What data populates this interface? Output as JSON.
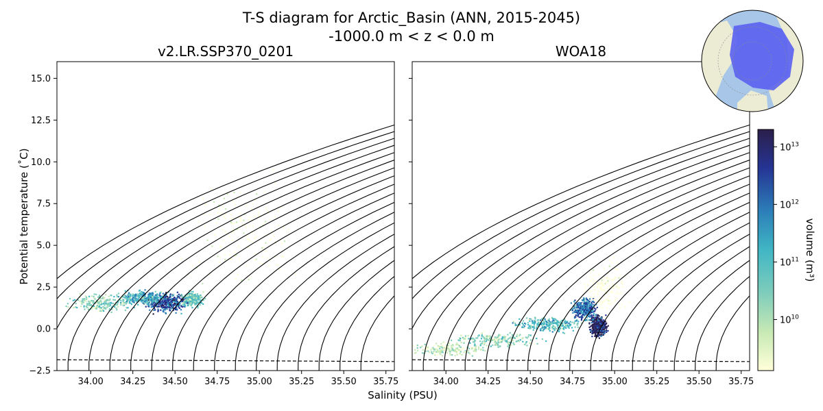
{
  "title_line1": "T-S diagram for Arctic_Basin (ANN, 2015-2045)",
  "title_line2": "-1000.0 m < z < 0.0 m",
  "xlabel": "Salinity (PSU)",
  "ylabel": "Potential temperature (˚C)",
  "colorbar": {
    "label": "volume (m³)",
    "scale": "log",
    "range": [
      1300000000.0,
      20000000000000.0
    ],
    "ticks": [
      {
        "value": 10000000000.0,
        "base": "10",
        "exp": "10"
      },
      {
        "value": 100000000000.0,
        "base": "10",
        "exp": "11"
      },
      {
        "value": 1000000000000.0,
        "base": "10",
        "exp": "12"
      },
      {
        "value": 10000000000000.0,
        "base": "10",
        "exp": "13"
      }
    ],
    "colors": [
      "#ffffd9",
      "#c7e9b4",
      "#7fcdbb",
      "#41b6c4",
      "#2c7fb8",
      "#253494",
      "#2b1f4a"
    ]
  },
  "inset_map": {
    "region": "Arctic_Basin",
    "land_color": "#ecebd4",
    "ocean_color": "#a8c6e8",
    "region_color": "#5a61f0"
  },
  "chart_data": [
    {
      "type": "heatmap",
      "title": "v2.LR.SSP370_0201",
      "xlim": [
        33.8,
        35.8
      ],
      "ylim": [
        -2.5,
        16
      ],
      "xticks": [
        "34.00",
        "34.25",
        "34.50",
        "34.75",
        "35.00",
        "35.25",
        "35.50",
        "35.75"
      ],
      "yticks": [
        "−2.5",
        "0.0",
        "2.5",
        "5.0",
        "7.5",
        "10.0",
        "12.5",
        "15.0"
      ],
      "freezing_line": [
        [
          33.8,
          -1.85
        ],
        [
          35.8,
          -1.96
        ]
      ],
      "density_contours": [
        "25.20",
        "25.40",
        "25.60",
        "25.80",
        "26.00",
        "26.20",
        "26.40",
        "26.60",
        "26.80",
        "27.00",
        "27.20",
        "27.40",
        "27.60",
        "27.80",
        "28.00",
        "28.20",
        "28.40",
        "28.60"
      ],
      "volume_clusters": [
        {
          "S": 34.45,
          "T": 1.6,
          "spreadS": 0.1,
          "spreadT": 0.45,
          "level": 0.85
        },
        {
          "S": 34.3,
          "T": 1.9,
          "spreadS": 0.12,
          "spreadT": 0.35,
          "level": 0.6
        },
        {
          "S": 34.05,
          "T": 1.6,
          "spreadS": 0.15,
          "spreadT": 0.4,
          "level": 0.4
        },
        {
          "S": 34.6,
          "T": 1.8,
          "spreadS": 0.05,
          "spreadT": 0.35,
          "level": 0.5
        },
        {
          "S": 34.9,
          "T": 6.0,
          "spreadS": 0.25,
          "spreadT": 2.5,
          "level": 0.15
        }
      ]
    },
    {
      "type": "heatmap",
      "title": "WOA18",
      "xlim": [
        33.8,
        35.8
      ],
      "ylim": [
        -2.5,
        16
      ],
      "xticks": [
        "34.00",
        "34.25",
        "34.50",
        "34.75",
        "35.00",
        "35.25",
        "35.50",
        "35.75"
      ],
      "yticks": [
        "−2.5",
        "0.0",
        "2.5",
        "5.0",
        "7.5",
        "10.0",
        "12.5",
        "15.0"
      ],
      "freezing_line": [
        [
          33.8,
          -1.85
        ],
        [
          35.8,
          -1.96
        ]
      ],
      "density_contours": [
        "25.20",
        "25.40",
        "25.60",
        "25.80",
        "26.00",
        "26.20",
        "26.40",
        "26.60",
        "26.80",
        "27.00",
        "27.20",
        "27.40",
        "27.60",
        "27.80",
        "28.00",
        "28.20",
        "28.40",
        "28.60"
      ],
      "volume_clusters": [
        {
          "S": 34.9,
          "T": 0.2,
          "spreadS": 0.04,
          "spreadT": 0.5,
          "level": 0.95
        },
        {
          "S": 34.82,
          "T": 1.2,
          "spreadS": 0.06,
          "spreadT": 0.5,
          "level": 0.75
        },
        {
          "S": 34.6,
          "T": 0.3,
          "spreadS": 0.15,
          "spreadT": 0.35,
          "level": 0.55
        },
        {
          "S": 34.3,
          "T": -0.6,
          "spreadS": 0.18,
          "spreadT": 0.35,
          "level": 0.4
        },
        {
          "S": 34.0,
          "T": -1.2,
          "spreadS": 0.18,
          "spreadT": 0.3,
          "level": 0.3
        },
        {
          "S": 34.95,
          "T": 2.5,
          "spreadS": 0.1,
          "spreadT": 1.2,
          "level": 0.1
        }
      ]
    }
  ]
}
